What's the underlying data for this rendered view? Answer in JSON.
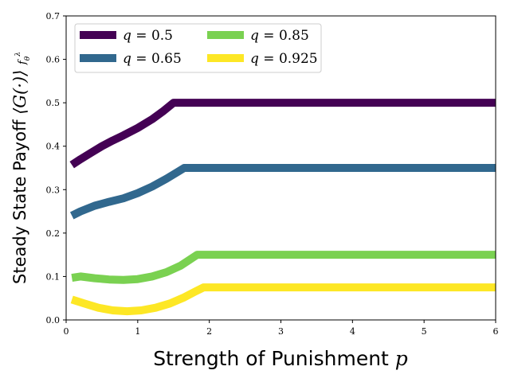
{
  "chart_data": {
    "type": "line",
    "xlabel": "Strength of Punishment p",
    "ylabel": "Steady State Payoff ⟨G(·)⟩ f_θ^λ",
    "xlim": [
      0,
      6
    ],
    "ylim": [
      0,
      0.7
    ],
    "xticks": [
      0,
      1,
      2,
      3,
      4,
      5,
      6
    ],
    "yticks": [
      0.0,
      0.1,
      0.2,
      0.3,
      0.4,
      0.5,
      0.6,
      0.7
    ],
    "xtick_labels": [
      "0",
      "1",
      "2",
      "3",
      "4",
      "5",
      "6"
    ],
    "ytick_labels": [
      "0.0",
      "0.1",
      "0.2",
      "0.3",
      "0.4",
      "0.5",
      "0.6",
      "0.7"
    ],
    "grid": false,
    "legend": {
      "placement": "top-left",
      "columns": 2
    },
    "series": [
      {
        "name": "q = 0.5",
        "color": "#440154",
        "points": [
          [
            0.08,
            0.357
          ],
          [
            0.2,
            0.37
          ],
          [
            0.35,
            0.385
          ],
          [
            0.5,
            0.4
          ],
          [
            0.65,
            0.413
          ],
          [
            0.8,
            0.425
          ],
          [
            1.0,
            0.442
          ],
          [
            1.2,
            0.462
          ],
          [
            1.35,
            0.48
          ],
          [
            1.5,
            0.5
          ],
          [
            2.0,
            0.5
          ],
          [
            3.0,
            0.5
          ],
          [
            4.0,
            0.5
          ],
          [
            5.0,
            0.5
          ],
          [
            6.0,
            0.5
          ]
        ]
      },
      {
        "name": "q = 0.65",
        "color": "#31688e",
        "points": [
          [
            0.08,
            0.24
          ],
          [
            0.2,
            0.25
          ],
          [
            0.4,
            0.263
          ],
          [
            0.6,
            0.272
          ],
          [
            0.8,
            0.28
          ],
          [
            1.0,
            0.292
          ],
          [
            1.2,
            0.307
          ],
          [
            1.4,
            0.325
          ],
          [
            1.55,
            0.34
          ],
          [
            1.65,
            0.35
          ],
          [
            2.0,
            0.35
          ],
          [
            3.0,
            0.35
          ],
          [
            4.0,
            0.35
          ],
          [
            5.0,
            0.35
          ],
          [
            6.0,
            0.35
          ]
        ]
      },
      {
        "name": "q = 0.85",
        "color": "#7ad151",
        "points": [
          [
            0.08,
            0.097
          ],
          [
            0.2,
            0.1
          ],
          [
            0.4,
            0.096
          ],
          [
            0.6,
            0.093
          ],
          [
            0.8,
            0.092
          ],
          [
            1.0,
            0.094
          ],
          [
            1.2,
            0.1
          ],
          [
            1.4,
            0.11
          ],
          [
            1.6,
            0.125
          ],
          [
            1.72,
            0.138
          ],
          [
            1.83,
            0.15
          ],
          [
            2.0,
            0.15
          ],
          [
            3.0,
            0.15
          ],
          [
            4.0,
            0.15
          ],
          [
            5.0,
            0.15
          ],
          [
            6.0,
            0.15
          ]
        ]
      },
      {
        "name": "q = 0.925",
        "color": "#fde725",
        "points": [
          [
            0.08,
            0.047
          ],
          [
            0.25,
            0.038
          ],
          [
            0.45,
            0.028
          ],
          [
            0.65,
            0.022
          ],
          [
            0.85,
            0.02
          ],
          [
            1.05,
            0.022
          ],
          [
            1.25,
            0.028
          ],
          [
            1.45,
            0.038
          ],
          [
            1.65,
            0.052
          ],
          [
            1.8,
            0.065
          ],
          [
            1.92,
            0.075
          ],
          [
            2.0,
            0.075
          ],
          [
            3.0,
            0.075
          ],
          [
            4.0,
            0.075
          ],
          [
            5.0,
            0.075
          ],
          [
            6.0,
            0.075
          ]
        ]
      }
    ]
  }
}
